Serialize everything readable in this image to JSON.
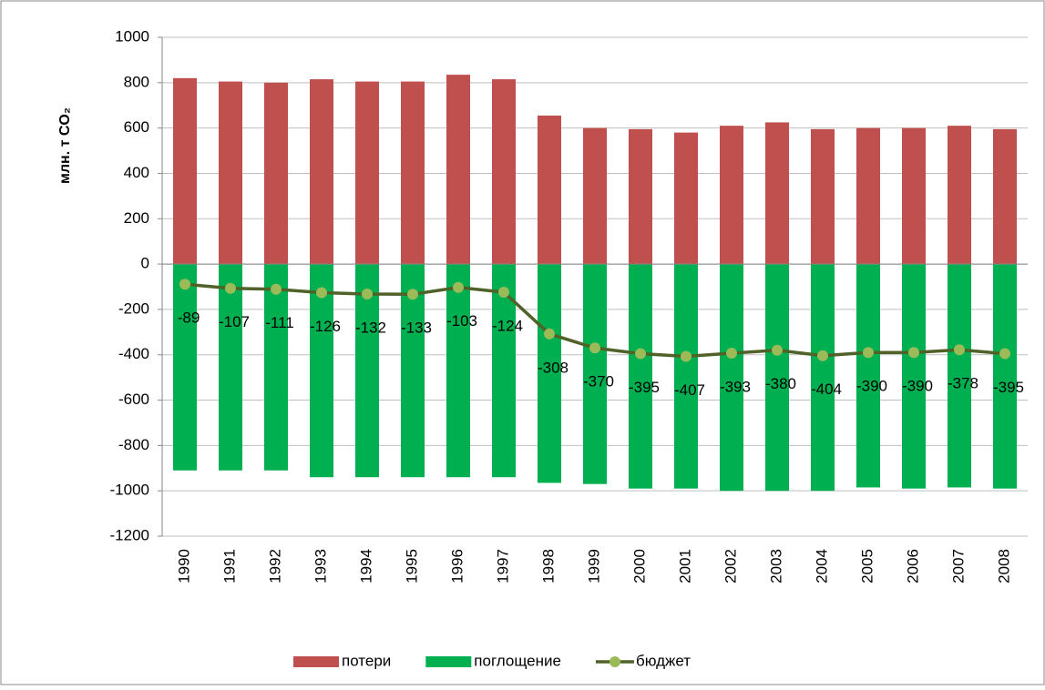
{
  "chart_data": {
    "type": "bar",
    "y_label": "млн. т CO₂",
    "categories": [
      "1990",
      "1991",
      "1992",
      "1993",
      "1994",
      "1995",
      "1996",
      "1997",
      "1998",
      "1999",
      "2000",
      "2001",
      "2002",
      "2003",
      "2004",
      "2005",
      "2006",
      "2007",
      "2008"
    ],
    "series": [
      {
        "name": "потери",
        "type": "bar",
        "color": "#c0504d",
        "values": [
          820,
          805,
          800,
          815,
          805,
          805,
          835,
          815,
          655,
          600,
          595,
          580,
          610,
          625,
          595,
          600,
          600,
          610,
          595
        ]
      },
      {
        "name": "поглощение",
        "type": "bar",
        "color": "#00b050",
        "values": [
          -910,
          -910,
          -910,
          -940,
          -940,
          -940,
          -940,
          -940,
          -965,
          -970,
          -990,
          -990,
          -1000,
          -1000,
          -1000,
          -985,
          -990,
          -985,
          -990
        ]
      },
      {
        "name": "бюджет",
        "type": "line",
        "color": "#4f6228",
        "marker_color": "#9bbb59",
        "values": [
          -89,
          -107,
          -111,
          -126,
          -132,
          -133,
          -103,
          -124,
          -308,
          -370,
          -395,
          -407,
          -393,
          -380,
          -404,
          -390,
          -390,
          -378,
          -395
        ]
      }
    ],
    "ylim": [
      -1200,
      1000
    ],
    "yticks": [
      -1200,
      -1000,
      -800,
      -600,
      -400,
      -200,
      0,
      200,
      400,
      600,
      800,
      1000
    ],
    "grid": true,
    "legend": "bottom"
  }
}
